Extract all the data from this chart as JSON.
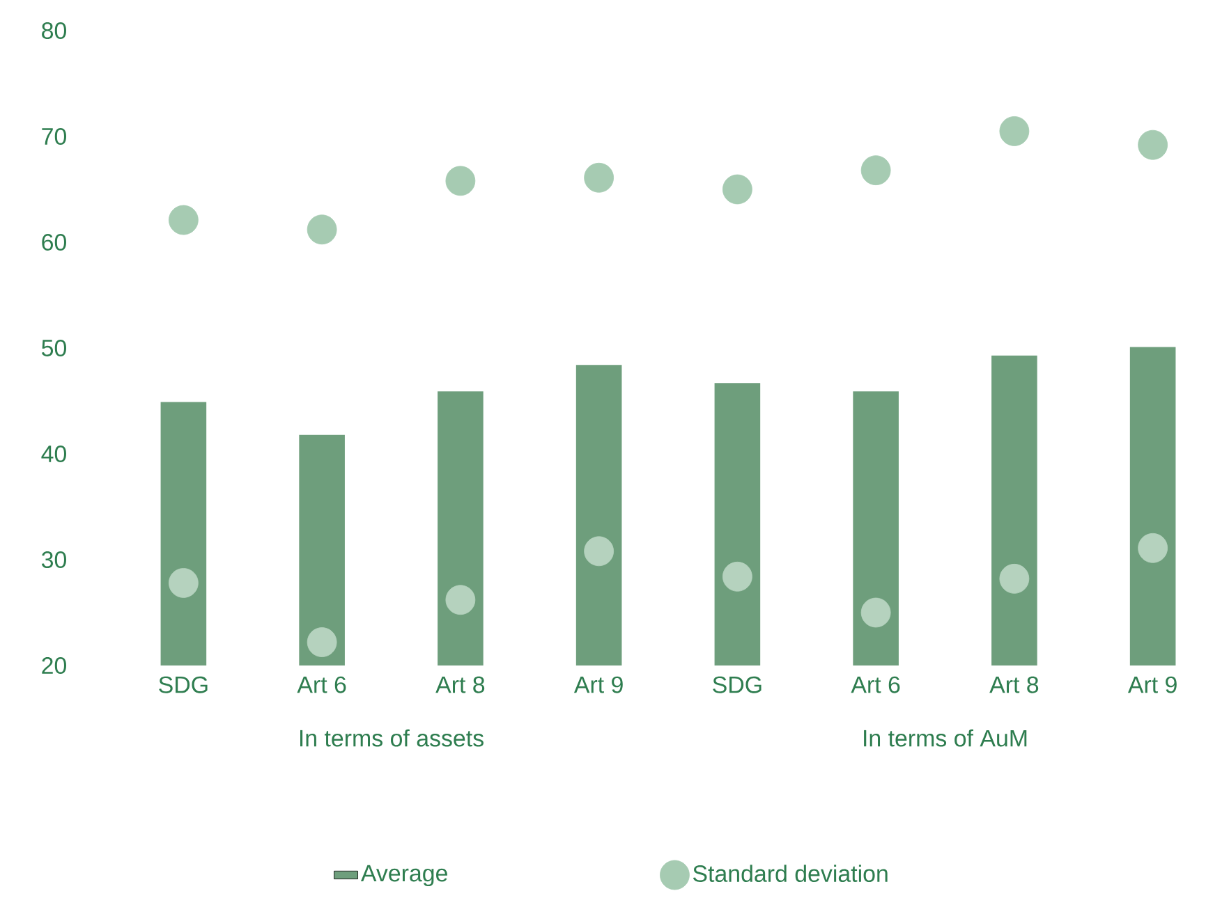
{
  "chart_data": {
    "type": "bar",
    "categories": [
      "SDG",
      "Art 6",
      "Art 8",
      "Art 9",
      "SDG",
      "Art 6",
      "Art 8",
      "Art 9"
    ],
    "series": [
      {
        "name": "Average",
        "color": "#6e9e7c",
        "values": [
          44.9,
          41.8,
          45.9,
          48.4,
          46.7,
          45.9,
          49.3,
          50.1
        ]
      },
      {
        "name": "Standard deviation",
        "type": "scatter",
        "color": "#a6cbb2",
        "values": [
          62.1,
          61.2,
          65.8,
          66.1,
          65.0,
          66.8,
          70.5,
          69.2
        ]
      },
      {
        "type": "scatter",
        "color": "#b5d2be",
        "values": [
          27.8,
          22.2,
          26.2,
          30.8,
          28.4,
          25.0,
          28.2,
          31.1
        ]
      }
    ],
    "ylim": [
      20,
      80
    ],
    "yticks": [
      20,
      30,
      40,
      50,
      60,
      70,
      80
    ],
    "annotations": [
      "In terms of assets",
      "In terms of AuM"
    ],
    "legend": "bottom",
    "grid": false
  }
}
